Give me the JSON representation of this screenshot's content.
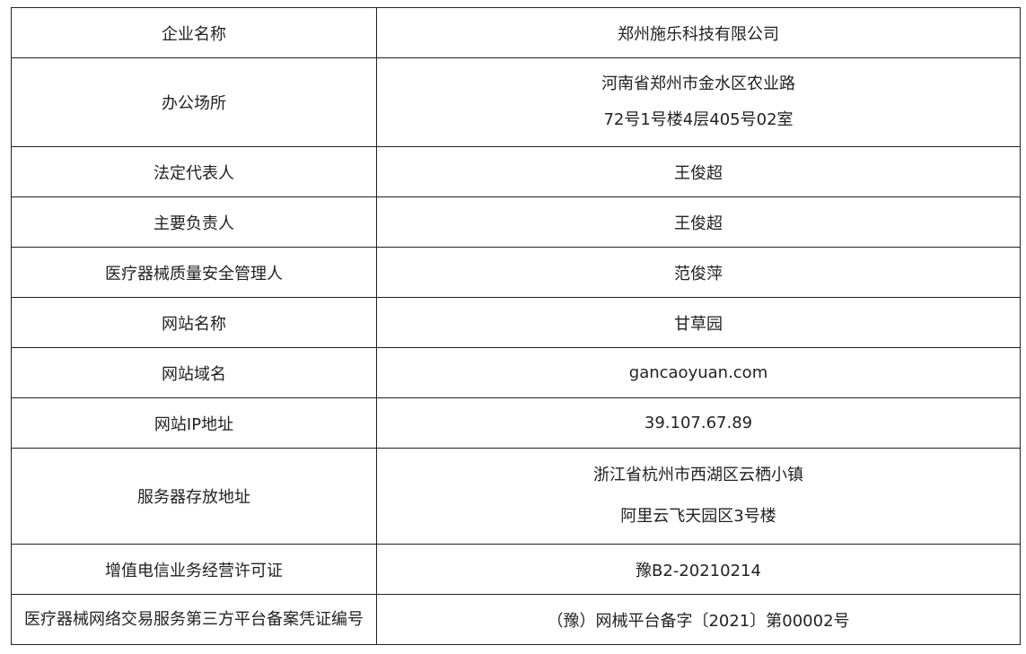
{
  "rows": [
    {
      "label": "企业名称",
      "value": [
        "郑州施乐科技有限公司"
      ]
    },
    {
      "label": "办公场所",
      "value": [
        "河南省郑州市金水区农业路",
        "72号1号楼4层405号02室"
      ]
    },
    {
      "label": "法定代表人",
      "value": [
        "王俊超"
      ]
    },
    {
      "label": "主要负责人",
      "value": [
        "王俊超"
      ]
    },
    {
      "label": "医疗器械质量安全管理人",
      "value": [
        "范俊萍"
      ]
    },
    {
      "label": "网站名称",
      "value": [
        "甘草园"
      ]
    },
    {
      "label": "网站域名",
      "value": [
        "gancaoyuan.com"
      ]
    },
    {
      "label": "网站IP地址",
      "value": [
        "39.107.67.89"
      ]
    },
    {
      "label": "服务器存放地址",
      "value": [
        "浙江省杭州市西湖区云栖小镇",
        "阿里云飞天园区3号楼"
      ]
    },
    {
      "label": "增值电信业务经营许可证",
      "value": [
        "豫B2-20210214"
      ]
    },
    {
      "label": "医疗器械网络交易服务第三方平台备案凭证编号",
      "value": [
        "（豫）网械平台备字〔2021〕第00002号"
      ]
    }
  ]
}
